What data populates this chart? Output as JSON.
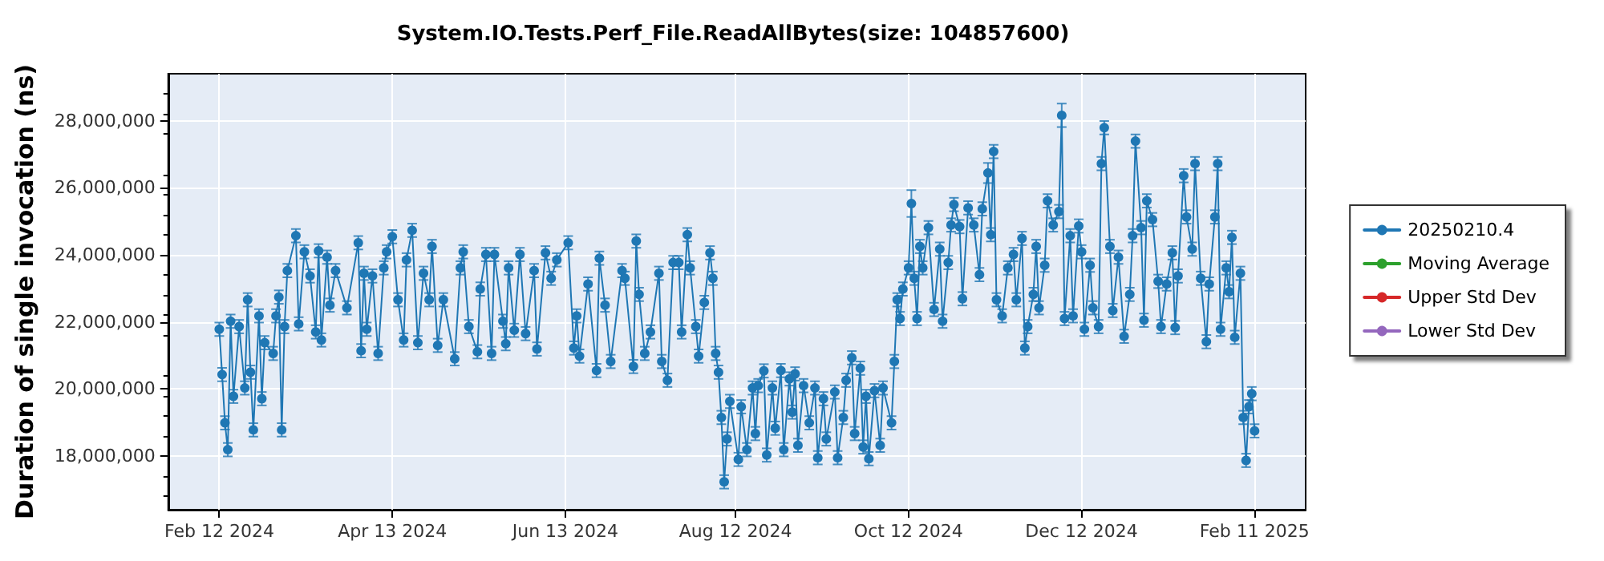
{
  "chart_data": {
    "type": "line",
    "title": "System.IO.Tests.Perf_File.ReadAllBytes(size: 104857600)",
    "ylabel": "Duration of single invocation (ns)",
    "xlim": [
      "2024-01-25",
      "2025-03-01"
    ],
    "xticks": [
      {
        "value": "2024-02-12",
        "label": "Feb 12 2024"
      },
      {
        "value": "2024-04-13",
        "label": "Apr 13 2024"
      },
      {
        "value": "2024-06-13",
        "label": "Jun 13 2024"
      },
      {
        "value": "2024-08-12",
        "label": "Aug 12 2024"
      },
      {
        "value": "2024-10-12",
        "label": "Oct 12 2024"
      },
      {
        "value": "2024-12-12",
        "label": "Dec 12 2024"
      },
      {
        "value": "2025-02-11",
        "label": "Feb 11 2025"
      }
    ],
    "ylim": [
      16400000,
      29400000
    ],
    "yticks": [
      {
        "value": 18000000,
        "label": "18,000,000"
      },
      {
        "value": 20000000,
        "label": "20,000,000"
      },
      {
        "value": 22000000,
        "label": "22,000,000"
      },
      {
        "value": 24000000,
        "label": "24,000,000"
      },
      {
        "value": 26000000,
        "label": "26,000,000"
      },
      {
        "value": 28000000,
        "label": "28,000,000"
      }
    ],
    "grid": true,
    "legend": "right",
    "marker": "circle",
    "line_style": "solid",
    "series": [
      {
        "name": "20250210.4",
        "color": "#1f77b4",
        "x": [
          "2024-02-12",
          "2024-02-13",
          "2024-02-14",
          "2024-02-15",
          "2024-02-16",
          "2024-02-17",
          "2024-02-19",
          "2024-02-21",
          "2024-02-22",
          "2024-02-23",
          "2024-02-24",
          "2024-02-26",
          "2024-02-27",
          "2024-02-28",
          "2024-03-02",
          "2024-03-03",
          "2024-03-04",
          "2024-03-05",
          "2024-03-06",
          "2024-03-07",
          "2024-03-10",
          "2024-03-11",
          "2024-03-13",
          "2024-03-15",
          "2024-03-17",
          "2024-03-18",
          "2024-03-19",
          "2024-03-21",
          "2024-03-22",
          "2024-03-24",
          "2024-03-28",
          "2024-04-01",
          "2024-04-02",
          "2024-04-03",
          "2024-04-04",
          "2024-04-06",
          "2024-04-08",
          "2024-04-10",
          "2024-04-11",
          "2024-04-13",
          "2024-04-15",
          "2024-04-17",
          "2024-04-18",
          "2024-04-20",
          "2024-04-22",
          "2024-04-24",
          "2024-04-26",
          "2024-04-27",
          "2024-04-29",
          "2024-05-01",
          "2024-05-05",
          "2024-05-07",
          "2024-05-08",
          "2024-05-10",
          "2024-05-13",
          "2024-05-14",
          "2024-05-16",
          "2024-05-18",
          "2024-05-19",
          "2024-05-22",
          "2024-05-23",
          "2024-05-24",
          "2024-05-26",
          "2024-05-28",
          "2024-05-30",
          "2024-06-02",
          "2024-06-03",
          "2024-06-06",
          "2024-06-08",
          "2024-06-10",
          "2024-06-14",
          "2024-06-16",
          "2024-06-17",
          "2024-06-18",
          "2024-06-21",
          "2024-06-24",
          "2024-06-25",
          "2024-06-27",
          "2024-06-29",
          "2024-07-03",
          "2024-07-04",
          "2024-07-07",
          "2024-07-08",
          "2024-07-09",
          "2024-07-11",
          "2024-07-13",
          "2024-07-16",
          "2024-07-17",
          "2024-07-19",
          "2024-07-21",
          "2024-07-23",
          "2024-07-24",
          "2024-07-26",
          "2024-07-27",
          "2024-07-29",
          "2024-07-30",
          "2024-08-01",
          "2024-08-03",
          "2024-08-04",
          "2024-08-05",
          "2024-08-06",
          "2024-08-07",
          "2024-08-08",
          "2024-08-09",
          "2024-08-10",
          "2024-08-13",
          "2024-08-14",
          "2024-08-16",
          "2024-08-18",
          "2024-08-19",
          "2024-08-20",
          "2024-08-22",
          "2024-08-23",
          "2024-08-25",
          "2024-08-26",
          "2024-08-28",
          "2024-08-29",
          "2024-08-31",
          "2024-09-01",
          "2024-09-02",
          "2024-09-03",
          "2024-09-05",
          "2024-09-07",
          "2024-09-09",
          "2024-09-10",
          "2024-09-12",
          "2024-09-13",
          "2024-09-16",
          "2024-09-17",
          "2024-09-19",
          "2024-09-20",
          "2024-09-22",
          "2024-09-23",
          "2024-09-25",
          "2024-09-26",
          "2024-09-27",
          "2024-09-28",
          "2024-09-30",
          "2024-10-02",
          "2024-10-03",
          "2024-10-06",
          "2024-10-07",
          "2024-10-08",
          "2024-10-09",
          "2024-10-10",
          "2024-10-12",
          "2024-10-13",
          "2024-10-14",
          "2024-10-15",
          "2024-10-16",
          "2024-10-17",
          "2024-10-19",
          "2024-10-21",
          "2024-10-23",
          "2024-10-24",
          "2024-10-26",
          "2024-10-27",
          "2024-10-28",
          "2024-10-30",
          "2024-10-31",
          "2024-11-02",
          "2024-11-04",
          "2024-11-06",
          "2024-11-07",
          "2024-11-09",
          "2024-11-10",
          "2024-11-11",
          "2024-11-12",
          "2024-11-14",
          "2024-11-16",
          "2024-11-18",
          "2024-11-19",
          "2024-11-21",
          "2024-11-22",
          "2024-11-23",
          "2024-11-25",
          "2024-11-26",
          "2024-11-27",
          "2024-11-29",
          "2024-11-30",
          "2024-12-02",
          "2024-12-04",
          "2024-12-05",
          "2024-12-06",
          "2024-12-08",
          "2024-12-09",
          "2024-12-11",
          "2024-12-12",
          "2024-12-13",
          "2024-12-15",
          "2024-12-16",
          "2024-12-18",
          "2024-12-19",
          "2024-12-20",
          "2024-12-22",
          "2024-12-23",
          "2024-12-25",
          "2024-12-27",
          "2024-12-29",
          "2024-12-30",
          "2024-12-31",
          "2025-01-02",
          "2025-01-03",
          "2025-01-04",
          "2025-01-06",
          "2025-01-08",
          "2025-01-09",
          "2025-01-11",
          "2025-01-13",
          "2025-01-14",
          "2025-01-15",
          "2025-01-17",
          "2025-01-18",
          "2025-01-20",
          "2025-01-21",
          "2025-01-23",
          "2025-01-25",
          "2025-01-26",
          "2025-01-28",
          "2025-01-29",
          "2025-01-30",
          "2025-02-01",
          "2025-02-02",
          "2025-02-03",
          "2025-02-04",
          "2025-02-06",
          "2025-02-07",
          "2025-02-08",
          "2025-02-09",
          "2025-02-10",
          "2025-02-11"
        ],
        "values": [
          21780000,
          20430000,
          18990000,
          18190000,
          22020000,
          19780000,
          21860000,
          20030000,
          22660000,
          20500000,
          18780000,
          22180000,
          19710000,
          21380000,
          21060000,
          22180000,
          22740000,
          18780000,
          21860000,
          23530000,
          24570000,
          21940000,
          24090000,
          23370000,
          21700000,
          24120000,
          21460000,
          23930000,
          22500000,
          23530000,
          22420000,
          24360000,
          21140000,
          23450000,
          21780000,
          23370000,
          21060000,
          23610000,
          24090000,
          24540000,
          22660000,
          21460000,
          23850000,
          24730000,
          21380000,
          23450000,
          22660000,
          24250000,
          21300000,
          22660000,
          20900000,
          23610000,
          24090000,
          21860000,
          21110000,
          22980000,
          24010000,
          21060000,
          24010000,
          22020000,
          21350000,
          23610000,
          21750000,
          24010000,
          21650000,
          23530000,
          21190000,
          24060000,
          23300000,
          23850000,
          24360000,
          21220000,
          22180000,
          20980000,
          23130000,
          20550000,
          23900000,
          22500000,
          20820000,
          23530000,
          23300000,
          20670000,
          24410000,
          22820000,
          21060000,
          21700000,
          23450000,
          20820000,
          20260000,
          23770000,
          23770000,
          21700000,
          24600000,
          23610000,
          21860000,
          20980000,
          22580000,
          24060000,
          23300000,
          21060000,
          20500000,
          19150000,
          17230000,
          18510000,
          19630000,
          17900000,
          19470000,
          18190000,
          20030000,
          18670000,
          20100000,
          20540000,
          18030000,
          20030000,
          18830000,
          20550000,
          18190000,
          20300000,
          19310000,
          20450000,
          18320000,
          20100000,
          18990000,
          20030000,
          17950000,
          19710000,
          18510000,
          19910000,
          17950000,
          19150000,
          20260000,
          20930000,
          18670000,
          20620000,
          18270000,
          19780000,
          17920000,
          19950000,
          18320000,
          20030000,
          18990000,
          20820000,
          22660000,
          22100000,
          22980000,
          23610000,
          25530000,
          23300000,
          22100000,
          24250000,
          23610000,
          24810000,
          22370000,
          24170000,
          22020000,
          23770000,
          24890000,
          25500000,
          24840000,
          22690000,
          25400000,
          24890000,
          23410000,
          25370000,
          26440000,
          24600000,
          27080000,
          22660000,
          22180000,
          23610000,
          24010000,
          22660000,
          24490000,
          21220000,
          21860000,
          22820000,
          24250000,
          22420000,
          23690000,
          25610000,
          24890000,
          25290000,
          28160000,
          22100000,
          24570000,
          22180000,
          24860000,
          24090000,
          21780000,
          23690000,
          22420000,
          21860000,
          26720000,
          27790000,
          24250000,
          22340000,
          23930000,
          21570000,
          22820000,
          24570000,
          27390000,
          24810000,
          22050000,
          25610000,
          25050000,
          23210000,
          21860000,
          23130000,
          24060000,
          21830000,
          23370000,
          26360000,
          25130000,
          24170000,
          26720000,
          23300000,
          21410000,
          23130000,
          25130000,
          26720000,
          21780000,
          23610000,
          22900000,
          24520000,
          21540000,
          23450000,
          19150000,
          17870000,
          19470000,
          19860000,
          18750000
        ],
        "errors": [
          200000,
          200000,
          200000,
          200000,
          200000,
          200000,
          200000,
          200000,
          200000,
          200000,
          200000,
          200000,
          200000,
          200000,
          200000,
          200000,
          200000,
          200000,
          200000,
          200000,
          200000,
          200000,
          200000,
          200000,
          200000,
          200000,
          200000,
          200000,
          200000,
          200000,
          200000,
          200000,
          200000,
          200000,
          200000,
          200000,
          200000,
          200000,
          200000,
          200000,
          200000,
          200000,
          200000,
          200000,
          200000,
          200000,
          200000,
          200000,
          200000,
          200000,
          200000,
          200000,
          200000,
          200000,
          200000,
          200000,
          200000,
          200000,
          200000,
          200000,
          200000,
          200000,
          200000,
          200000,
          200000,
          200000,
          200000,
          200000,
          200000,
          200000,
          200000,
          200000,
          200000,
          200000,
          200000,
          200000,
          200000,
          200000,
          200000,
          200000,
          200000,
          200000,
          200000,
          200000,
          200000,
          200000,
          200000,
          200000,
          200000,
          200000,
          200000,
          200000,
          200000,
          200000,
          200000,
          200000,
          200000,
          200000,
          200000,
          200000,
          200000,
          200000,
          200000,
          200000,
          200000,
          200000,
          200000,
          200000,
          200000,
          200000,
          200000,
          200000,
          200000,
          200000,
          200000,
          200000,
          200000,
          200000,
          200000,
          200000,
          200000,
          200000,
          200000,
          200000,
          200000,
          200000,
          200000,
          200000,
          200000,
          200000,
          200000,
          200000,
          200000,
          200000,
          200000,
          200000,
          200000,
          200000,
          200000,
          200000,
          200000,
          200000,
          200000,
          200000,
          200000,
          200000,
          400000,
          200000,
          200000,
          200000,
          200000,
          200000,
          200000,
          200000,
          200000,
          200000,
          200000,
          200000,
          200000,
          200000,
          200000,
          200000,
          200000,
          200000,
          300000,
          200000,
          200000,
          200000,
          200000,
          200000,
          200000,
          200000,
          200000,
          200000,
          200000,
          200000,
          200000,
          200000,
          200000,
          200000,
          200000,
          200000,
          350000,
          200000,
          200000,
          200000,
          200000,
          200000,
          200000,
          200000,
          200000,
          200000,
          200000,
          200000,
          200000,
          200000,
          200000,
          200000,
          200000,
          200000,
          200000,
          200000,
          200000,
          200000,
          200000,
          200000,
          200000,
          200000,
          200000,
          200000,
          200000,
          200000,
          200000,
          200000,
          200000,
          200000,
          200000,
          200000,
          200000,
          200000,
          200000,
          200000,
          200000,
          200000,
          200000,
          200000,
          200000,
          200000,
          200000,
          200000,
          200000
        ]
      },
      {
        "name": "Moving Average",
        "color": "#2ca02c"
      },
      {
        "name": "Upper Std Dev",
        "color": "#d62728"
      },
      {
        "name": "Lower Std Dev",
        "color": "#9467bd"
      }
    ]
  }
}
